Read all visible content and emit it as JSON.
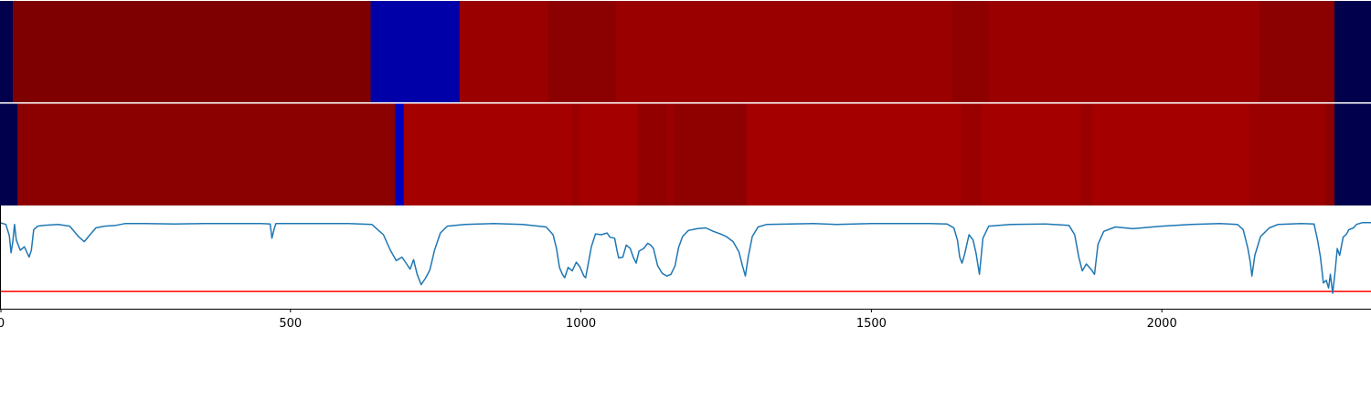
{
  "chart_data": {
    "type": "heatmap",
    "x_range": [
      0,
      2360
    ],
    "x_ticks": [
      {
        "value": 0,
        "label": "0"
      },
      {
        "value": 500,
        "label": "500"
      },
      {
        "value": 1000,
        "label": "1000"
      },
      {
        "value": 1500,
        "label": "1500"
      },
      {
        "value": 2000,
        "label": "2000"
      }
    ],
    "track_1": [
      {
        "start": 0,
        "end": 22,
        "color": "#00004d"
      },
      {
        "start": 22,
        "end": 638,
        "color": "#7f0000"
      },
      {
        "start": 638,
        "end": 791,
        "color": "#0000a8"
      },
      {
        "start": 791,
        "end": 943,
        "color": "#9a0000"
      },
      {
        "start": 943,
        "end": 1060,
        "color": "#8b0000"
      },
      {
        "start": 1060,
        "end": 1638,
        "color": "#9a0000"
      },
      {
        "start": 1638,
        "end": 1702,
        "color": "#8f0000"
      },
      {
        "start": 1702,
        "end": 2168,
        "color": "#9a0000"
      },
      {
        "start": 2168,
        "end": 2297,
        "color": "#8b0000"
      },
      {
        "start": 2297,
        "end": 2360,
        "color": "#00004d"
      }
    ],
    "track_2": [
      {
        "start": 0,
        "end": 30,
        "color": "#00004d"
      },
      {
        "start": 30,
        "end": 680,
        "color": "#8b0000"
      },
      {
        "start": 680,
        "end": 695,
        "color": "#0000c0"
      },
      {
        "start": 695,
        "end": 984,
        "color": "#a50000"
      },
      {
        "start": 984,
        "end": 998,
        "color": "#9a0000"
      },
      {
        "start": 998,
        "end": 1097,
        "color": "#a50000"
      },
      {
        "start": 1097,
        "end": 1148,
        "color": "#920000"
      },
      {
        "start": 1148,
        "end": 1160,
        "color": "#9a0000"
      },
      {
        "start": 1160,
        "end": 1285,
        "color": "#8f0000"
      },
      {
        "start": 1285,
        "end": 1654,
        "color": "#a50000"
      },
      {
        "start": 1654,
        "end": 1690,
        "color": "#9a0000"
      },
      {
        "start": 1690,
        "end": 1860,
        "color": "#a50000"
      },
      {
        "start": 1860,
        "end": 1880,
        "color": "#9a0000"
      },
      {
        "start": 1880,
        "end": 2150,
        "color": "#a50000"
      },
      {
        "start": 2150,
        "end": 2282,
        "color": "#9a0000"
      },
      {
        "start": 2282,
        "end": 2297,
        "color": "#8b0000"
      },
      {
        "start": 2297,
        "end": 2360,
        "color": "#00004d"
      }
    ],
    "line_series": {
      "color": "#1f77b4",
      "y_range": [
        0,
        1.2
      ],
      "points": [
        [
          0,
          1.0
        ],
        [
          10,
          0.98
        ],
        [
          16,
          0.85
        ],
        [
          19,
          0.65
        ],
        [
          22,
          0.78
        ],
        [
          25,
          0.98
        ],
        [
          28,
          0.8
        ],
        [
          35,
          0.68
        ],
        [
          42,
          0.72
        ],
        [
          50,
          0.6
        ],
        [
          54,
          0.68
        ],
        [
          58,
          0.92
        ],
        [
          65,
          0.96
        ],
        [
          75,
          0.97
        ],
        [
          100,
          0.98
        ],
        [
          120,
          0.96
        ],
        [
          135,
          0.84
        ],
        [
          145,
          0.78
        ],
        [
          155,
          0.86
        ],
        [
          165,
          0.94
        ],
        [
          180,
          0.96
        ],
        [
          200,
          0.97
        ],
        [
          215,
          0.99
        ],
        [
          250,
          0.99
        ],
        [
          300,
          0.985
        ],
        [
          350,
          0.99
        ],
        [
          400,
          0.99
        ],
        [
          450,
          0.99
        ],
        [
          465,
          0.985
        ],
        [
          468,
          0.82
        ],
        [
          472,
          0.93
        ],
        [
          475,
          0.99
        ],
        [
          500,
          0.99
        ],
        [
          550,
          0.99
        ],
        [
          600,
          0.99
        ],
        [
          640,
          0.98
        ],
        [
          660,
          0.86
        ],
        [
          672,
          0.68
        ],
        [
          682,
          0.56
        ],
        [
          692,
          0.6
        ],
        [
          700,
          0.52
        ],
        [
          706,
          0.46
        ],
        [
          712,
          0.57
        ],
        [
          718,
          0.4
        ],
        [
          725,
          0.28
        ],
        [
          732,
          0.35
        ],
        [
          740,
          0.45
        ],
        [
          748,
          0.68
        ],
        [
          758,
          0.88
        ],
        [
          770,
          0.96
        ],
        [
          800,
          0.98
        ],
        [
          850,
          0.99
        ],
        [
          900,
          0.98
        ],
        [
          940,
          0.95
        ],
        [
          952,
          0.86
        ],
        [
          958,
          0.7
        ],
        [
          963,
          0.48
        ],
        [
          968,
          0.4
        ],
        [
          972,
          0.36
        ],
        [
          978,
          0.48
        ],
        [
          985,
          0.44
        ],
        [
          992,
          0.54
        ],
        [
          998,
          0.49
        ],
        [
          1005,
          0.38
        ],
        [
          1008,
          0.36
        ],
        [
          1012,
          0.5
        ],
        [
          1018,
          0.72
        ],
        [
          1025,
          0.87
        ],
        [
          1035,
          0.86
        ],
        [
          1045,
          0.88
        ],
        [
          1050,
          0.83
        ],
        [
          1058,
          0.82
        ],
        [
          1062,
          0.68
        ],
        [
          1065,
          0.59
        ],
        [
          1072,
          0.6
        ],
        [
          1078,
          0.74
        ],
        [
          1085,
          0.7
        ],
        [
          1090,
          0.6
        ],
        [
          1095,
          0.53
        ],
        [
          1100,
          0.67
        ],
        [
          1108,
          0.7
        ],
        [
          1115,
          0.76
        ],
        [
          1120,
          0.74
        ],
        [
          1125,
          0.7
        ],
        [
          1132,
          0.5
        ],
        [
          1140,
          0.41
        ],
        [
          1148,
          0.38
        ],
        [
          1155,
          0.4
        ],
        [
          1162,
          0.5
        ],
        [
          1168,
          0.71
        ],
        [
          1175,
          0.84
        ],
        [
          1185,
          0.91
        ],
        [
          1200,
          0.93
        ],
        [
          1215,
          0.94
        ],
        [
          1228,
          0.9
        ],
        [
          1240,
          0.87
        ],
        [
          1250,
          0.84
        ],
        [
          1262,
          0.78
        ],
        [
          1272,
          0.66
        ],
        [
          1278,
          0.5
        ],
        [
          1283,
          0.38
        ],
        [
          1288,
          0.6
        ],
        [
          1295,
          0.84
        ],
        [
          1305,
          0.95
        ],
        [
          1320,
          0.98
        ],
        [
          1400,
          0.99
        ],
        [
          1440,
          0.98
        ],
        [
          1500,
          0.99
        ],
        [
          1600,
          0.99
        ],
        [
          1630,
          0.985
        ],
        [
          1642,
          0.94
        ],
        [
          1648,
          0.8
        ],
        [
          1652,
          0.6
        ],
        [
          1656,
          0.53
        ],
        [
          1660,
          0.62
        ],
        [
          1668,
          0.86
        ],
        [
          1675,
          0.8
        ],
        [
          1680,
          0.65
        ],
        [
          1686,
          0.4
        ],
        [
          1692,
          0.82
        ],
        [
          1702,
          0.96
        ],
        [
          1740,
          0.98
        ],
        [
          1800,
          0.985
        ],
        [
          1840,
          0.97
        ],
        [
          1850,
          0.86
        ],
        [
          1857,
          0.6
        ],
        [
          1863,
          0.44
        ],
        [
          1870,
          0.52
        ],
        [
          1878,
          0.46
        ],
        [
          1884,
          0.4
        ],
        [
          1890,
          0.75
        ],
        [
          1900,
          0.9
        ],
        [
          1920,
          0.95
        ],
        [
          1950,
          0.93
        ],
        [
          2000,
          0.96
        ],
        [
          2050,
          0.98
        ],
        [
          2100,
          0.99
        ],
        [
          2130,
          0.98
        ],
        [
          2140,
          0.92
        ],
        [
          2148,
          0.7
        ],
        [
          2152,
          0.55
        ],
        [
          2155,
          0.38
        ],
        [
          2160,
          0.62
        ],
        [
          2170,
          0.84
        ],
        [
          2185,
          0.94
        ],
        [
          2200,
          0.98
        ],
        [
          2240,
          0.99
        ],
        [
          2262,
          0.985
        ],
        [
          2268,
          0.8
        ],
        [
          2273,
          0.6
        ],
        [
          2278,
          0.3
        ],
        [
          2283,
          0.33
        ],
        [
          2287,
          0.24
        ],
        [
          2290,
          0.4
        ],
        [
          2294,
          0.18
        ],
        [
          2298,
          0.42
        ],
        [
          2302,
          0.7
        ],
        [
          2306,
          0.62
        ],
        [
          2312,
          0.83
        ],
        [
          2318,
          0.87
        ],
        [
          2322,
          0.92
        ],
        [
          2330,
          0.94
        ],
        [
          2335,
          0.98
        ],
        [
          2345,
          1.0
        ],
        [
          2360,
          1.0
        ]
      ]
    },
    "threshold_line": {
      "value": 0.2,
      "color": "#ff0000"
    }
  }
}
